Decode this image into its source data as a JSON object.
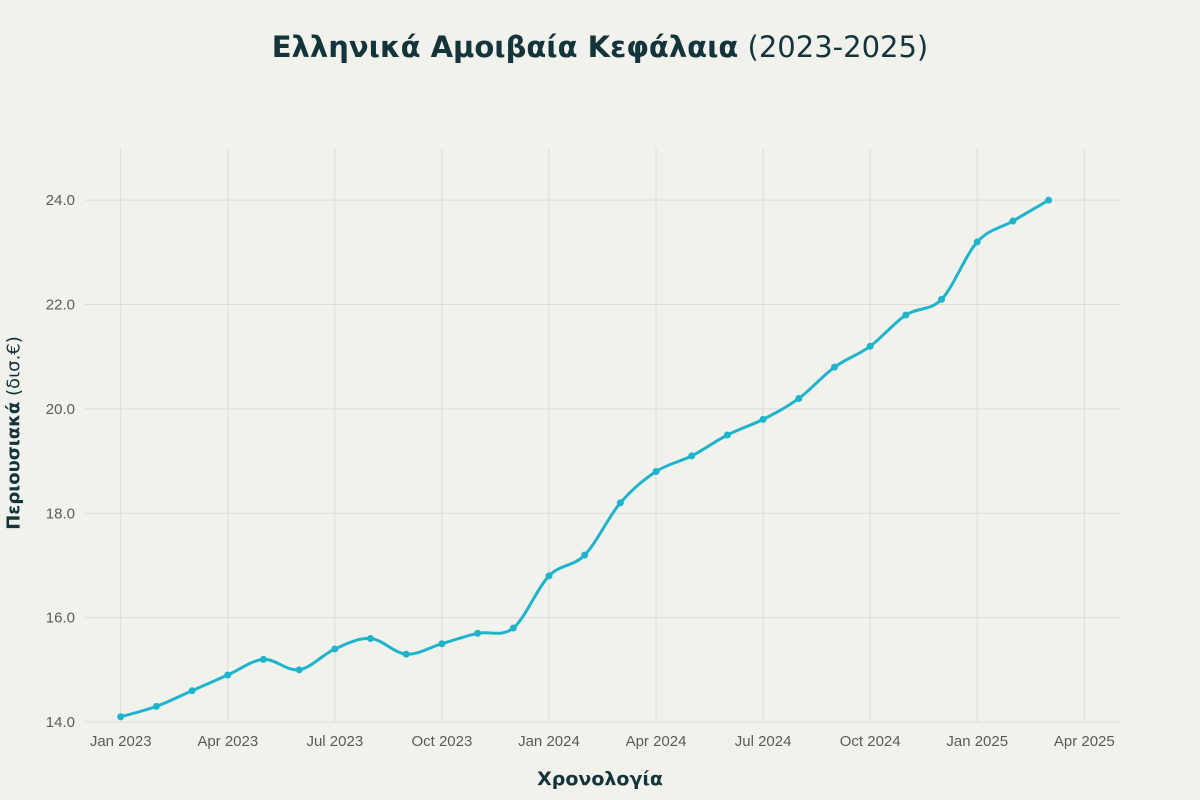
{
  "chart_data": {
    "type": "line",
    "title_main": "Ελληνικά Αμοιβαία Κεφάλαια",
    "title_suffix": "(2023-2025)",
    "xlabel": "Χρονολογία",
    "ylabel_main": "Περιουσιακά",
    "ylabel_suffix": "(δισ.€)",
    "ylim": [
      14.0,
      25.0
    ],
    "y_ticks": [
      "14.0",
      "16.0",
      "18.0",
      "20.0",
      "22.0",
      "24.0"
    ],
    "y_tick_values": [
      14,
      16,
      18,
      20,
      22,
      24
    ],
    "x_ticks": [
      "Jan 2023",
      "Apr 2023",
      "Jul 2023",
      "Oct 2023",
      "Jan 2024",
      "Apr 2024",
      "Jul 2024",
      "Oct 2024",
      "Jan 2025",
      "Apr 2025"
    ],
    "x_tick_months": [
      0,
      3,
      6,
      9,
      12,
      15,
      18,
      21,
      24,
      27
    ],
    "x_range_months": [
      -1,
      28
    ],
    "grid": true,
    "line_color": "#1fb4cc",
    "x": [
      "2023-01",
      "2023-02",
      "2023-03",
      "2023-04",
      "2023-05",
      "2023-06",
      "2023-07",
      "2023-08",
      "2023-09",
      "2023-10",
      "2023-11",
      "2023-12",
      "2024-01",
      "2024-02",
      "2024-03",
      "2024-04",
      "2024-05",
      "2024-06",
      "2024-07",
      "2024-08",
      "2024-09",
      "2024-10",
      "2024-11",
      "2024-12",
      "2025-01",
      "2025-02",
      "2025-03"
    ],
    "values": [
      14.1,
      14.3,
      14.6,
      14.9,
      15.2,
      15.0,
      15.4,
      15.6,
      15.3,
      15.5,
      15.7,
      15.8,
      16.8,
      17.2,
      18.2,
      18.8,
      19.1,
      19.5,
      19.8,
      20.2,
      20.8,
      21.2,
      21.8,
      22.1,
      23.2,
      23.6,
      24.0
    ]
  }
}
